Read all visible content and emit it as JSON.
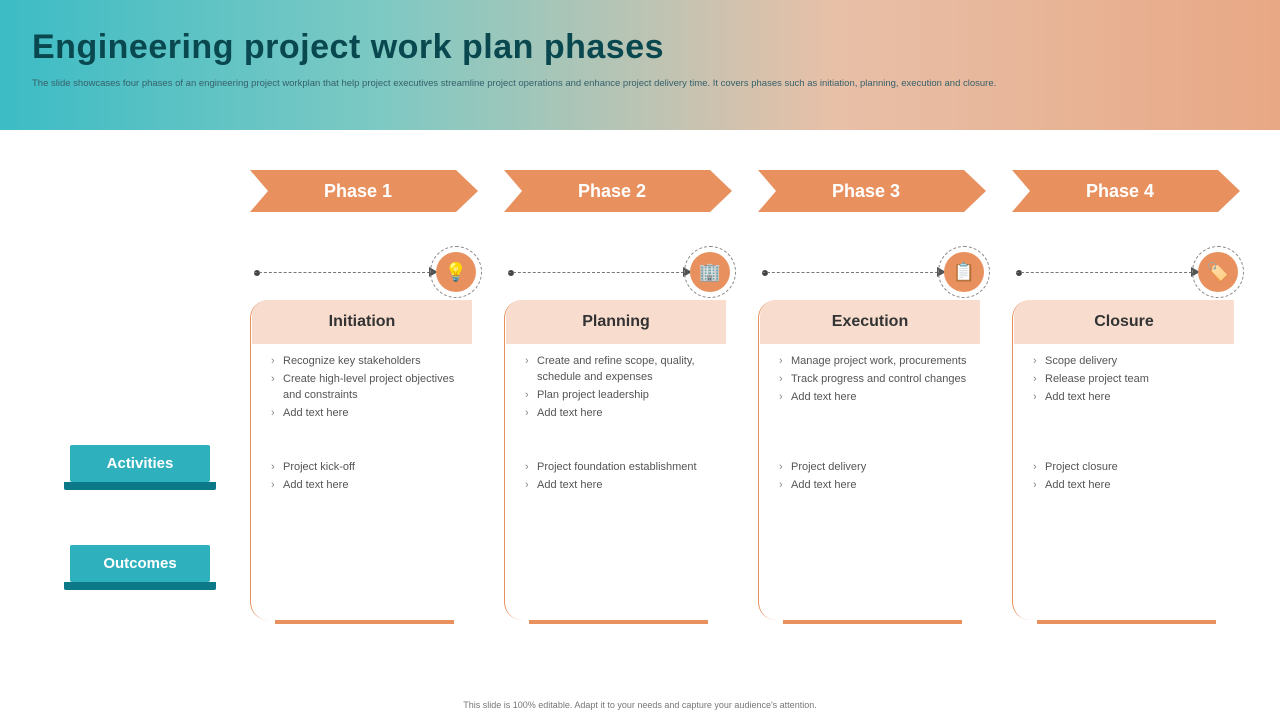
{
  "colors": {
    "accent": "#e8915f",
    "accent_light": "#f8ddcf",
    "teal": "#2fb0bd",
    "teal_dark": "#0b7988",
    "title_color": "#0a4850"
  },
  "header": {
    "title": "Engineering project work plan phases",
    "subtitle": "The slide showcases four phases of an engineering project workplan that help project executives streamline project operations and enhance project delivery time. It covers phases such as initiation, planning, execution and closure."
  },
  "row_labels": {
    "activities": "Activities",
    "outcomes": "Outcomes"
  },
  "phases": [
    {
      "banner": "Phase 1",
      "icon": "💡",
      "name": "Initiation",
      "activities": [
        "Recognize key stakeholders",
        "Create high-level project objectives and constraints",
        "Add text here"
      ],
      "outcomes": [
        "Project kick-off",
        "Add text here"
      ]
    },
    {
      "banner": "Phase 2",
      "icon": "🏢",
      "name": "Planning",
      "activities": [
        "Create and refine scope, quality, schedule and expenses",
        "Plan project leadership",
        "Add text here"
      ],
      "outcomes": [
        "Project foundation establishment",
        "Add text here"
      ]
    },
    {
      "banner": "Phase 3",
      "icon": "📋",
      "name": "Execution",
      "activities": [
        "Manage project work, procurements",
        "Track progress and control changes",
        "Add text here"
      ],
      "outcomes": [
        "Project delivery",
        "Add text here"
      ]
    },
    {
      "banner": "Phase 4",
      "icon": "🏷️",
      "name": "Closure",
      "activities": [
        "Scope delivery",
        "Release project team",
        "Add text here"
      ],
      "outcomes": [
        "Project closure",
        "Add text here"
      ]
    }
  ],
  "footer": "This slide is 100% editable. Adapt it to your needs and capture your audience's attention."
}
